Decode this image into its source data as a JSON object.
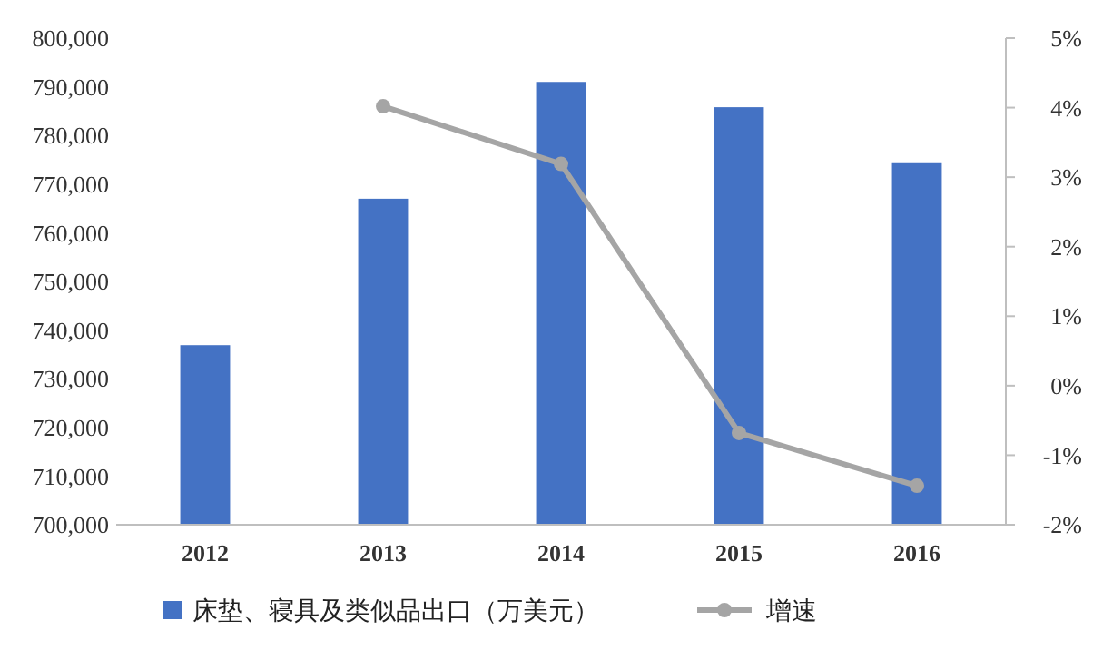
{
  "chart_data": {
    "type": "bar",
    "categories": [
      "2012",
      "2013",
      "2014",
      "2015",
      "2016"
    ],
    "series": [
      {
        "name": "床垫、寝具及类似品出口（万美元）",
        "color": "#4472c4",
        "values": [
          736900,
          767000,
          791000,
          785800,
          774300
        ]
      },
      {
        "name": "增速",
        "type": "line",
        "axis": "y2",
        "color": "#a5a5a5",
        "marker": "circle",
        "values": [
          null,
          4.02,
          3.19,
          -0.68,
          -1.44
        ]
      }
    ],
    "ylim": [
      700000,
      800000
    ],
    "yticks": [
      {
        "value": 700000,
        "label": "700,000"
      },
      {
        "value": 710000,
        "label": "710,000"
      },
      {
        "value": 720000,
        "label": "720,000"
      },
      {
        "value": 730000,
        "label": "730,000"
      },
      {
        "value": 740000,
        "label": "740,000"
      },
      {
        "value": 750000,
        "label": "750,000"
      },
      {
        "value": 760000,
        "label": "760,000"
      },
      {
        "value": 770000,
        "label": "770,000"
      },
      {
        "value": 780000,
        "label": "780,000"
      },
      {
        "value": 790000,
        "label": "790,000"
      },
      {
        "value": 800000,
        "label": "800,000"
      }
    ],
    "y2lim": [
      -2,
      5
    ],
    "y2ticks": [
      {
        "value": -2,
        "label": "-2%"
      },
      {
        "value": -1,
        "label": "-1%"
      },
      {
        "value": 0,
        "label": "0%"
      },
      {
        "value": 1,
        "label": "1%"
      },
      {
        "value": 2,
        "label": "2%"
      },
      {
        "value": 3,
        "label": "3%"
      },
      {
        "value": 4,
        "label": "4%"
      },
      {
        "value": 5,
        "label": "5%"
      }
    ],
    "legend": "bottom"
  }
}
